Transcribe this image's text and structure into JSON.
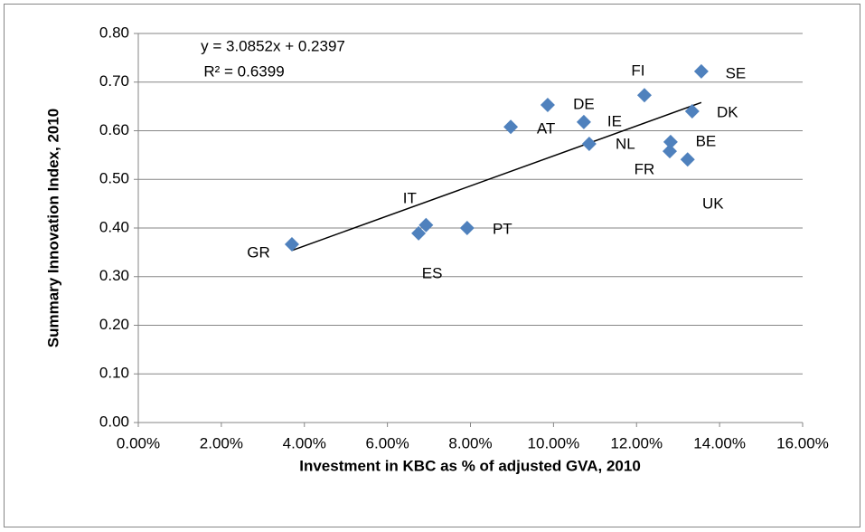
{
  "chart_data": {
    "type": "scatter",
    "x_label": "Investment in KBC as % of adjusted GVA, 2010",
    "y_label": "Summary Innovation Index, 2010",
    "xlim": [
      0,
      0.16
    ],
    "ylim": [
      0,
      0.8
    ],
    "xticks": [
      {
        "value": 0,
        "label": "0.00%"
      },
      {
        "value": 0.02,
        "label": "2.00%"
      },
      {
        "value": 0.04,
        "label": "4.00%"
      },
      {
        "value": 0.06,
        "label": "6.00%"
      },
      {
        "value": 0.08,
        "label": "8.00%"
      },
      {
        "value": 0.1,
        "label": "10.00%"
      },
      {
        "value": 0.12,
        "label": "12.00%"
      },
      {
        "value": 0.14,
        "label": "14.00%"
      },
      {
        "value": 0.16,
        "label": "16.00%"
      }
    ],
    "yticks": [
      {
        "value": 0,
        "label": "0.00"
      },
      {
        "value": 0.1,
        "label": "0.10"
      },
      {
        "value": 0.2,
        "label": "0.20"
      },
      {
        "value": 0.3,
        "label": "0.30"
      },
      {
        "value": 0.4,
        "label": "0.40"
      },
      {
        "value": 0.5,
        "label": "0.50"
      },
      {
        "value": 0.6,
        "label": "0.60"
      },
      {
        "value": 0.7,
        "label": "0.70"
      },
      {
        "value": 0.8,
        "label": "0.80"
      }
    ],
    "grid": true,
    "color": "#4f81bd",
    "labels": [
      "GR",
      "ES",
      "IT",
      "PT",
      "AT",
      "DE",
      "IE",
      "NL",
      "FI",
      "SE",
      "DK",
      "BE",
      "FR",
      "UK"
    ],
    "x": [
      0.037,
      0.0675,
      0.0693,
      0.0792,
      0.0897,
      0.0986,
      0.1073,
      0.1086,
      0.1219,
      0.1356,
      0.1334,
      0.1282,
      0.128,
      0.1323
    ],
    "y": [
      0.3665,
      0.389,
      0.406,
      0.4,
      0.608,
      0.653,
      0.618,
      0.573,
      0.673,
      0.722,
      0.64,
      0.577,
      0.558,
      0.541
    ],
    "trendline": {
      "slope": 3.0852,
      "intercept": 0.2397,
      "equation": "y = 3.0852x + 0.2397",
      "r2": "R² = 0.6399"
    }
  }
}
